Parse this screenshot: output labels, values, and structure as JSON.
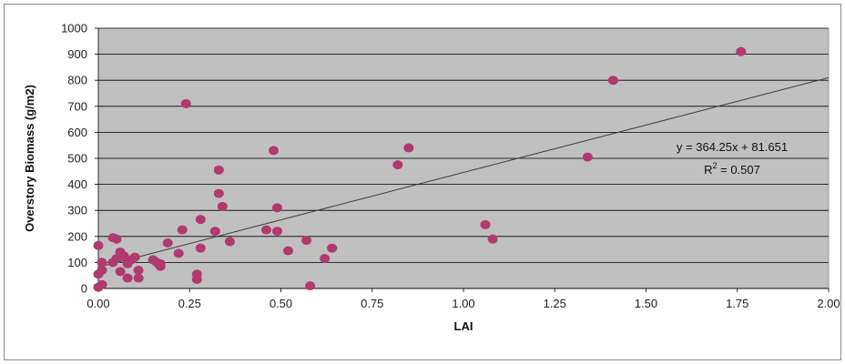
{
  "chart_data": {
    "type": "scatter",
    "xlabel": "LAI",
    "ylabel": "Overstory Biomass (g/m2)",
    "xlim": [
      0,
      2
    ],
    "ylim": [
      0,
      1000
    ],
    "x_ticks": [
      "0.00",
      "0.25",
      "0.50",
      "0.75",
      "1.00",
      "1.25",
      "1.50",
      "1.75",
      "2.00"
    ],
    "y_ticks": [
      "0",
      "100",
      "200",
      "300",
      "400",
      "500",
      "600",
      "700",
      "800",
      "900",
      "1000"
    ],
    "grid": "horizontal",
    "background_color": "#c0c0c0",
    "marker_color": "#b03a6e",
    "trendline": {
      "slope": 364.25,
      "intercept": 81.651,
      "equation": "y = 364.25x + 81.651",
      "r2_prefix": "R",
      "r2_sup": "2",
      "r2_value": " = 0.507"
    },
    "points": [
      {
        "x": 1.76,
        "y": 910
      },
      {
        "x": 1.41,
        "y": 800
      },
      {
        "x": 1.34,
        "y": 505
      },
      {
        "x": 0.24,
        "y": 710
      },
      {
        "x": 0.85,
        "y": 540
      },
      {
        "x": 0.82,
        "y": 475
      },
      {
        "x": 0.48,
        "y": 530
      },
      {
        "x": 0.33,
        "y": 455
      },
      {
        "x": 0.33,
        "y": 365
      },
      {
        "x": 0.34,
        "y": 315
      },
      {
        "x": 0.49,
        "y": 310
      },
      {
        "x": 0.28,
        "y": 265
      },
      {
        "x": 1.06,
        "y": 245
      },
      {
        "x": 1.08,
        "y": 190
      },
      {
        "x": 0.23,
        "y": 225
      },
      {
        "x": 0.32,
        "y": 220
      },
      {
        "x": 0.46,
        "y": 225
      },
      {
        "x": 0.49,
        "y": 220
      },
      {
        "x": 0.36,
        "y": 180
      },
      {
        "x": 0.57,
        "y": 185
      },
      {
        "x": 0.64,
        "y": 155
      },
      {
        "x": 0.52,
        "y": 145
      },
      {
        "x": 0.62,
        "y": 115
      },
      {
        "x": 0.0,
        "y": 165
      },
      {
        "x": 0.04,
        "y": 195
      },
      {
        "x": 0.05,
        "y": 190
      },
      {
        "x": 0.19,
        "y": 175
      },
      {
        "x": 0.28,
        "y": 155
      },
      {
        "x": 0.22,
        "y": 135
      },
      {
        "x": 0.06,
        "y": 140
      },
      {
        "x": 0.07,
        "y": 125
      },
      {
        "x": 0.1,
        "y": 120
      },
      {
        "x": 0.09,
        "y": 110
      },
      {
        "x": 0.15,
        "y": 110
      },
      {
        "x": 0.16,
        "y": 100
      },
      {
        "x": 0.17,
        "y": 95
      },
      {
        "x": 0.17,
        "y": 85
      },
      {
        "x": 0.01,
        "y": 100
      },
      {
        "x": 0.04,
        "y": 100
      },
      {
        "x": 0.05,
        "y": 115
      },
      {
        "x": 0.08,
        "y": 95
      },
      {
        "x": 0.11,
        "y": 70
      },
      {
        "x": 0.06,
        "y": 65
      },
      {
        "x": 0.01,
        "y": 70
      },
      {
        "x": 0.0,
        "y": 55
      },
      {
        "x": 0.11,
        "y": 40
      },
      {
        "x": 0.08,
        "y": 40
      },
      {
        "x": 0.27,
        "y": 55
      },
      {
        "x": 0.27,
        "y": 35
      },
      {
        "x": 0.58,
        "y": 10
      },
      {
        "x": 0.01,
        "y": 15
      },
      {
        "x": 0.0,
        "y": 5
      }
    ]
  }
}
